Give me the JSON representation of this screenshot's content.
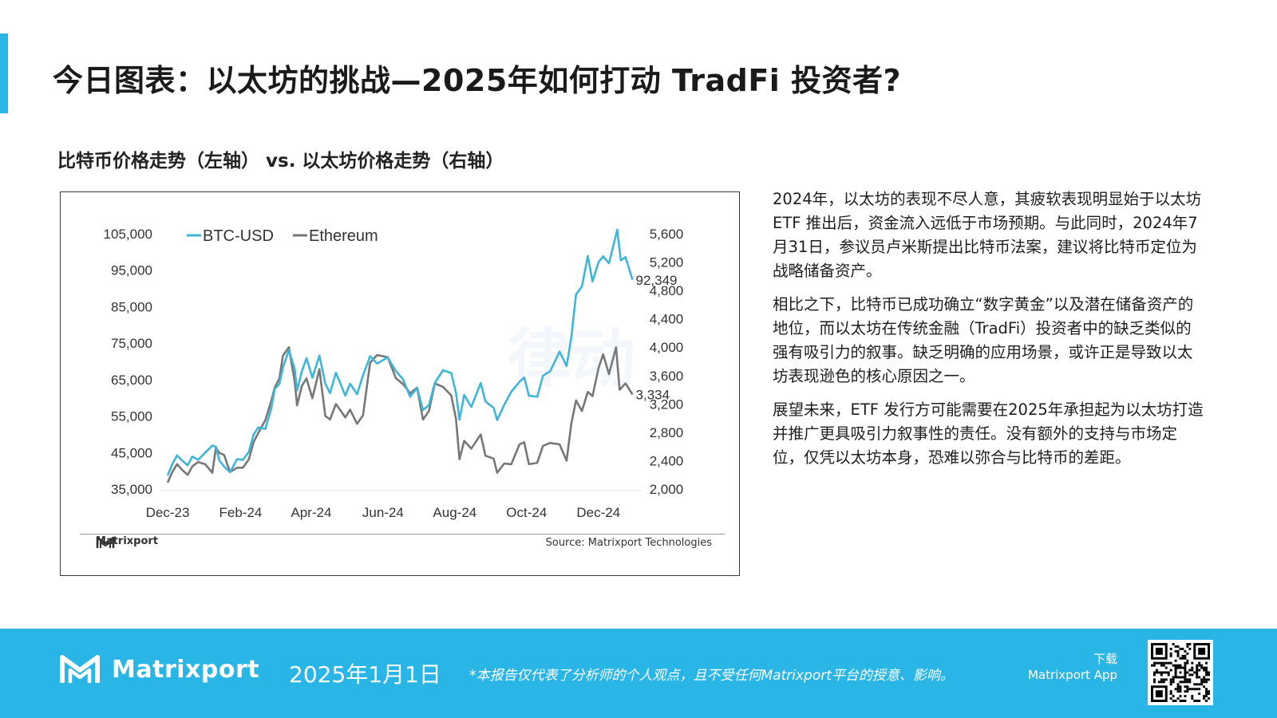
{
  "page": {
    "title": "今日图表：以太坊的挑战—2025年如何打动 TradFi 投资者?",
    "accent_color": "#29b6e6"
  },
  "chart_subtitle": "比特币价格走势（左轴） vs. 以太坊价格走势（右轴）",
  "chart_data": {
    "type": "line",
    "title": "比特币价格走势（左轴） vs. 以太坊价格走势（右轴）",
    "x_ticks": [
      "Dec-23",
      "Feb-24",
      "Apr-24",
      "Jun-24",
      "Aug-24",
      "Oct-24",
      "Dec-24"
    ],
    "x_range": [
      "2023-12-01",
      "2024-12-31"
    ],
    "y_left": {
      "ticks": [
        "105,000",
        "95,000",
        "85,000",
        "75,000",
        "65,000",
        "55,000",
        "45,000",
        "35,000"
      ],
      "range": [
        35000,
        105000
      ]
    },
    "y_right": {
      "ticks": [
        "5,600",
        "5,200",
        "4,800",
        "4,400",
        "4,000",
        "3,600",
        "3,200",
        "2,800",
        "2,400",
        "2,000"
      ],
      "range": [
        2000,
        5600
      ]
    },
    "grid": false,
    "legend_position": "top-left",
    "series": [
      {
        "name": "BTC-USD",
        "axis": "left",
        "color": "#3fb6d9",
        "end_label": "92,349",
        "points": [
          [
            "2023-12-01",
            38700
          ],
          [
            "2023-12-05",
            41900
          ],
          [
            "2023-12-09",
            44200
          ],
          [
            "2023-12-14",
            42600
          ],
          [
            "2023-12-18",
            41500
          ],
          [
            "2023-12-22",
            43900
          ],
          [
            "2023-12-27",
            43000
          ],
          [
            "2024-01-02",
            45000
          ],
          [
            "2024-01-08",
            46900
          ],
          [
            "2024-01-11",
            46600
          ],
          [
            "2024-01-14",
            42800
          ],
          [
            "2024-01-18",
            41200
          ],
          [
            "2024-01-23",
            39600
          ],
          [
            "2024-01-29",
            43200
          ],
          [
            "2024-02-03",
            43000
          ],
          [
            "2024-02-08",
            45200
          ],
          [
            "2024-02-12",
            49900
          ],
          [
            "2024-02-16",
            51900
          ],
          [
            "2024-02-22",
            51500
          ],
          [
            "2024-02-27",
            57000
          ],
          [
            "2024-03-01",
            62400
          ],
          [
            "2024-03-05",
            63800
          ],
          [
            "2024-03-08",
            68300
          ],
          [
            "2024-03-13",
            73100
          ],
          [
            "2024-03-18",
            67900
          ],
          [
            "2024-03-20",
            62000
          ],
          [
            "2024-03-24",
            67200
          ],
          [
            "2024-03-28",
            70900
          ],
          [
            "2024-04-02",
            65500
          ],
          [
            "2024-04-08",
            71600
          ],
          [
            "2024-04-13",
            63900
          ],
          [
            "2024-04-17",
            61300
          ],
          [
            "2024-04-22",
            66900
          ],
          [
            "2024-04-30",
            60600
          ],
          [
            "2024-05-04",
            63900
          ],
          [
            "2024-05-10",
            61000
          ],
          [
            "2024-05-15",
            66200
          ],
          [
            "2024-05-21",
            71400
          ],
          [
            "2024-05-27",
            69400
          ],
          [
            "2024-06-05",
            71100
          ],
          [
            "2024-06-12",
            67300
          ],
          [
            "2024-06-18",
            65100
          ],
          [
            "2024-06-24",
            60300
          ],
          [
            "2024-06-30",
            62700
          ],
          [
            "2024-07-05",
            56700
          ],
          [
            "2024-07-10",
            58000
          ],
          [
            "2024-07-15",
            64100
          ],
          [
            "2024-07-22",
            67600
          ],
          [
            "2024-07-29",
            66800
          ],
          [
            "2024-08-02",
            61400
          ],
          [
            "2024-08-05",
            54000
          ],
          [
            "2024-08-09",
            60800
          ],
          [
            "2024-08-15",
            57500
          ],
          [
            "2024-08-23",
            64100
          ],
          [
            "2024-08-27",
            59000
          ],
          [
            "2024-09-03",
            57300
          ],
          [
            "2024-09-06",
            53900
          ],
          [
            "2024-09-12",
            58100
          ],
          [
            "2024-09-18",
            61700
          ],
          [
            "2024-09-25",
            64400
          ],
          [
            "2024-09-29",
            65600
          ],
          [
            "2024-10-03",
            60600
          ],
          [
            "2024-10-10",
            60300
          ],
          [
            "2024-10-15",
            66100
          ],
          [
            "2024-10-21",
            67300
          ],
          [
            "2024-10-29",
            72700
          ],
          [
            "2024-11-04",
            68700
          ],
          [
            "2024-11-08",
            76500
          ],
          [
            "2024-11-12",
            88400
          ],
          [
            "2024-11-17",
            90500
          ],
          [
            "2024-11-22",
            98900
          ],
          [
            "2024-11-26",
            91900
          ],
          [
            "2024-12-01",
            97200
          ],
          [
            "2024-12-05",
            98800
          ],
          [
            "2024-12-10",
            96900
          ],
          [
            "2024-12-17",
            106100
          ],
          [
            "2024-12-20",
            97700
          ],
          [
            "2024-12-24",
            98600
          ],
          [
            "2024-12-30",
            92349
          ]
        ]
      },
      {
        "name": "Ethereum",
        "axis": "right",
        "color": "#777777",
        "end_label": "3,334",
        "points": [
          [
            "2023-12-01",
            2090
          ],
          [
            "2023-12-05",
            2240
          ],
          [
            "2023-12-09",
            2350
          ],
          [
            "2023-12-14",
            2260
          ],
          [
            "2023-12-18",
            2200
          ],
          [
            "2023-12-22",
            2320
          ],
          [
            "2023-12-27",
            2380
          ],
          [
            "2024-01-02",
            2350
          ],
          [
            "2024-01-08",
            2230
          ],
          [
            "2024-01-11",
            2580
          ],
          [
            "2024-01-14",
            2510
          ],
          [
            "2024-01-18",
            2480
          ],
          [
            "2024-01-23",
            2240
          ],
          [
            "2024-01-29",
            2300
          ],
          [
            "2024-02-03",
            2300
          ],
          [
            "2024-02-08",
            2420
          ],
          [
            "2024-02-12",
            2660
          ],
          [
            "2024-02-16",
            2790
          ],
          [
            "2024-02-22",
            2970
          ],
          [
            "2024-02-27",
            3240
          ],
          [
            "2024-03-01",
            3430
          ],
          [
            "2024-03-05",
            3560
          ],
          [
            "2024-03-08",
            3880
          ],
          [
            "2024-03-13",
            4000
          ],
          [
            "2024-03-18",
            3510
          ],
          [
            "2024-03-20",
            3180
          ],
          [
            "2024-03-24",
            3450
          ],
          [
            "2024-03-28",
            3560
          ],
          [
            "2024-04-02",
            3280
          ],
          [
            "2024-04-08",
            3690
          ],
          [
            "2024-04-13",
            3030
          ],
          [
            "2024-04-17",
            2980
          ],
          [
            "2024-04-22",
            3200
          ],
          [
            "2024-04-30",
            3010
          ],
          [
            "2024-05-04",
            3120
          ],
          [
            "2024-05-10",
            2920
          ],
          [
            "2024-05-15",
            3040
          ],
          [
            "2024-05-21",
            3780
          ],
          [
            "2024-05-27",
            3890
          ],
          [
            "2024-06-05",
            3860
          ],
          [
            "2024-06-12",
            3560
          ],
          [
            "2024-06-18",
            3480
          ],
          [
            "2024-06-24",
            3350
          ],
          [
            "2024-06-30",
            3430
          ],
          [
            "2024-07-05",
            2980
          ],
          [
            "2024-07-10",
            3100
          ],
          [
            "2024-07-15",
            3490
          ],
          [
            "2024-07-22",
            3440
          ],
          [
            "2024-07-29",
            3320
          ],
          [
            "2024-08-02",
            2990
          ],
          [
            "2024-08-05",
            2420
          ],
          [
            "2024-08-09",
            2680
          ],
          [
            "2024-08-15",
            2570
          ],
          [
            "2024-08-23",
            2770
          ],
          [
            "2024-08-27",
            2470
          ],
          [
            "2024-09-03",
            2430
          ],
          [
            "2024-09-06",
            2230
          ],
          [
            "2024-09-12",
            2360
          ],
          [
            "2024-09-18",
            2350
          ],
          [
            "2024-09-25",
            2630
          ],
          [
            "2024-09-29",
            2660
          ],
          [
            "2024-10-03",
            2350
          ],
          [
            "2024-10-10",
            2370
          ],
          [
            "2024-10-15",
            2610
          ],
          [
            "2024-10-21",
            2650
          ],
          [
            "2024-10-29",
            2630
          ],
          [
            "2024-11-04",
            2400
          ],
          [
            "2024-11-08",
            2920
          ],
          [
            "2024-11-12",
            3250
          ],
          [
            "2024-11-17",
            3100
          ],
          [
            "2024-11-22",
            3370
          ],
          [
            "2024-11-26",
            3310
          ],
          [
            "2024-12-01",
            3700
          ],
          [
            "2024-12-05",
            3900
          ],
          [
            "2024-12-10",
            3620
          ],
          [
            "2024-12-16",
            4000
          ],
          [
            "2024-12-19",
            3400
          ],
          [
            "2024-12-24",
            3490
          ],
          [
            "2024-12-30",
            3334
          ]
        ]
      }
    ]
  },
  "chart_footer": {
    "brand": "Matrixport",
    "source": "Source: Matrixport Technologies"
  },
  "watermark": "律动",
  "commentary": [
    "2024年，以太坊的表现不尽人意，其疲软表现明显始于以太坊 ETF 推出后，资金流入远低于市场预期。与此同时，2024年7月31日，参议员卢米斯提出比特币法案，建议将比特币定位为战略储备资产。",
    "相比之下，比特币已成功确立“数字黄金”以及潜在储备资产的地位，而以太坊在传统金融（TradFi）投资者中的缺乏类似的强有吸引力的叙事。缺乏明确的应用场景，或许正是导致以太坊表现逊色的核心原因之一。",
    "展望未来，ETF 发行方可能需要在2025年承担起为以太坊打造并推广更具吸引力叙事性的责任。没有额外的支持与市场定位，仅凭以太坊本身，恐难以弥合与比特币的差距。"
  ],
  "footer": {
    "brand": "Matrixport",
    "date": "2025年1月1日",
    "disclaimer": "*本报告仅代表了分析师的个人观点，且不受任何Matrixport平台的授意、影响。",
    "download_line1": "下载",
    "download_line2": "Matrixport App",
    "background_color": "#29b6e6"
  }
}
